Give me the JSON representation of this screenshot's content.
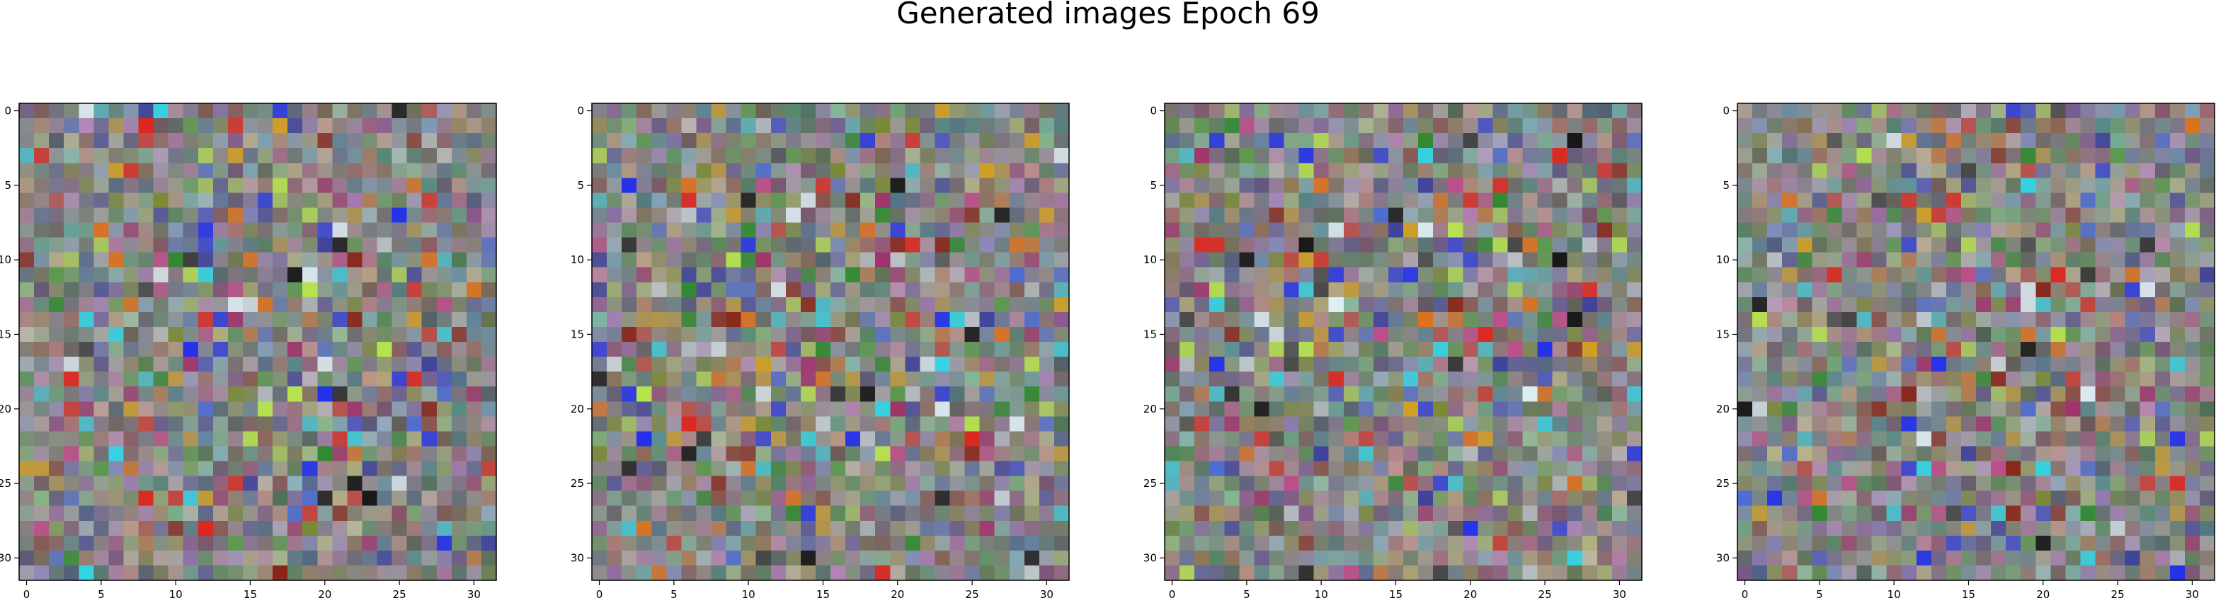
{
  "figure": {
    "title": "Generated images Epoch 69"
  },
  "chart_data": [
    {
      "type": "heatmap",
      "title": "",
      "xlabel": "",
      "ylabel": "",
      "grid_size": [
        32,
        32
      ],
      "xticks": [
        0,
        5,
        10,
        15,
        20,
        25,
        30
      ],
      "yticks": [
        0,
        5,
        10,
        15,
        20,
        25,
        30
      ],
      "xlim": [
        -0.5,
        31.5
      ],
      "ylim": [
        31.5,
        -0.5
      ],
      "grid": false,
      "content": "32x32 RGB generated image (noisy colour pixels)",
      "seed": 11
    },
    {
      "type": "heatmap",
      "title": "",
      "xlabel": "",
      "ylabel": "",
      "grid_size": [
        32,
        32
      ],
      "xticks": [
        0,
        5,
        10,
        15,
        20,
        25,
        30
      ],
      "yticks": [
        0,
        5,
        10,
        15,
        20,
        25,
        30
      ],
      "xlim": [
        -0.5,
        31.5
      ],
      "ylim": [
        31.5,
        -0.5
      ],
      "grid": false,
      "content": "32x32 RGB generated image (noisy colour pixels)",
      "seed": 23
    },
    {
      "type": "heatmap",
      "title": "",
      "xlabel": "",
      "ylabel": "",
      "grid_size": [
        32,
        32
      ],
      "xticks": [
        0,
        5,
        10,
        15,
        20,
        25,
        30
      ],
      "yticks": [
        0,
        5,
        10,
        15,
        20,
        25,
        30
      ],
      "xlim": [
        -0.5,
        31.5
      ],
      "ylim": [
        31.5,
        -0.5
      ],
      "grid": false,
      "content": "32x32 RGB generated image (noisy colour pixels)",
      "seed": 37
    },
    {
      "type": "heatmap",
      "title": "",
      "xlabel": "",
      "ylabel": "",
      "grid_size": [
        32,
        32
      ],
      "xticks": [
        0,
        5,
        10,
        15,
        20,
        25,
        30
      ],
      "yticks": [
        0,
        5,
        10,
        15,
        20,
        25,
        30
      ],
      "xlim": [
        -0.5,
        31.5
      ],
      "ylim": [
        31.5,
        -0.5
      ],
      "grid": false,
      "content": "32x32 RGB generated image (noisy colour pixels)",
      "seed": 51
    }
  ],
  "palette": {
    "base": "#888888",
    "accents": [
      "#e0241b",
      "#1e2cf0",
      "#8a1f12",
      "#3c3f9c",
      "#2fd8e8",
      "#b8e84a",
      "#e0701a",
      "#2a8a2a",
      "#d4a020",
      "#a0306a",
      "#5a9a4a",
      "#e8f8ff",
      "#101010",
      "#4a6ad8",
      "#7a8a30",
      "#c04a8a"
    ]
  }
}
